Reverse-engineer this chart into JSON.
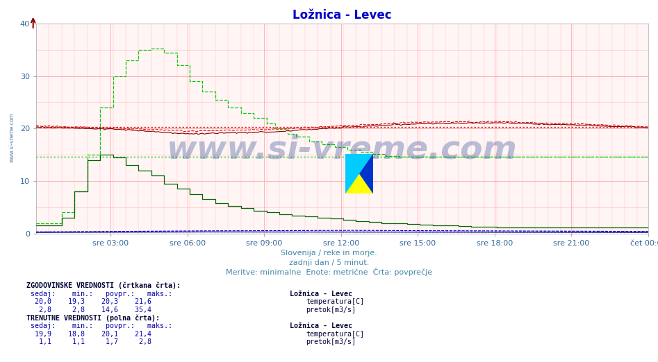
{
  "title": "Ložnica - Levec",
  "title_color": "#0000cc",
  "bg_color": "#ffffff",
  "plot_bg_color": "#fff5f5",
  "xlim": [
    0,
    287
  ],
  "ylim": [
    0,
    40
  ],
  "yticks": [
    0,
    10,
    20,
    30,
    40
  ],
  "xtick_labels": [
    "sre 03:00",
    "sre 06:00",
    "sre 09:00",
    "sre 12:00",
    "sre 15:00",
    "sre 18:00",
    "sre 21:00",
    "čet 00:00"
  ],
  "xtick_positions": [
    35,
    71,
    107,
    143,
    179,
    215,
    251,
    287
  ],
  "tick_color": "#336699",
  "subtitle_lines": [
    "Slovenija / reke in morje.",
    "zadnji dan / 5 minut.",
    "Meritve: minimalne  Enote: metrične  Črta: povprečje"
  ],
  "subtitle_color": "#4488aa",
  "watermark": "www.si-vreme.com",
  "watermark_color": "#1a3a8a",
  "watermark_alpha": 0.3,
  "temp_hist_color": "#dd0000",
  "temp_curr_color": "#880000",
  "flow_hist_color": "#00cc00",
  "flow_curr_color": "#006600",
  "height_hist_color": "#0000dd",
  "height_curr_color": "#000088",
  "temp_avg_hist": 20.3,
  "temp_avg_curr": 20.1,
  "flow_avg_hist": 14.6,
  "flow_avg_curr": 1.7,
  "height_avg_hist": 0.4,
  "height_avg_curr": 0.2,
  "n_points": 288,
  "legend_color": "#0000aa",
  "legend_red": "#cc0000",
  "legend_green": "#008800"
}
